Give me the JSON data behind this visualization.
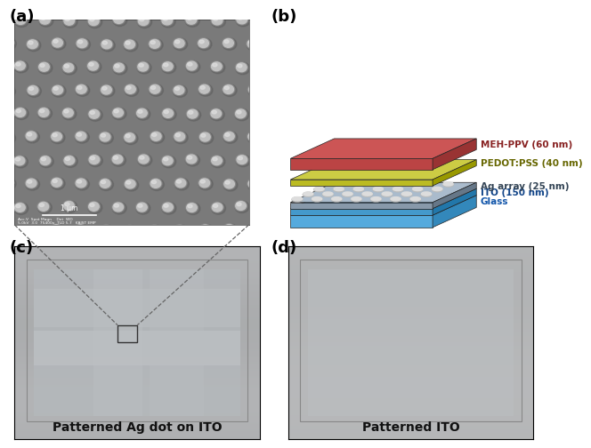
{
  "figure_width": 6.27,
  "figure_height": 5.3,
  "bg_color": "#ffffff",
  "panel_label_fontsize": 13,
  "panel_label_fontweight": "bold",
  "caption_c": "Patterned Ag dot on ITO",
  "caption_d": "Patterned ITO",
  "caption_fontsize": 10,
  "caption_fontweight": "bold",
  "sem_bg": "#7a7a7a",
  "sem_dot_main": "#c0c0c0",
  "sem_dot_shadow": "#555555",
  "sem_dot_highlight": "#e0e0e0",
  "layer_meh_top": "#cc5555",
  "layer_meh_face": "#bb4444",
  "layer_meh_side": "#993333",
  "layer_pedot_top": "#cccc44",
  "layer_pedot_face": "#bbbb22",
  "layer_pedot_side": "#999900",
  "layer_ag_top": "#aabbcc",
  "layer_ag_face": "#8899aa",
  "layer_ag_side": "#667788",
  "layer_ito_top": "#55aadd",
  "layer_ito_face": "#4499cc",
  "layer_ito_side": "#2277aa",
  "layer_glass_top": "#77bbee",
  "layer_glass_face": "#55aadd",
  "layer_glass_side": "#3388bb",
  "photo_c_bg": "#b0b5b8",
  "photo_d_bg": "#b8bcbe",
  "text_meh": "MEH-PPV (60 nm)",
  "text_pedot": "PEDOT:PSS (40 nm)",
  "text_ag": "Ag array (25 nm)",
  "text_ito": "ITO (150 nm)",
  "text_glass": "Glass"
}
